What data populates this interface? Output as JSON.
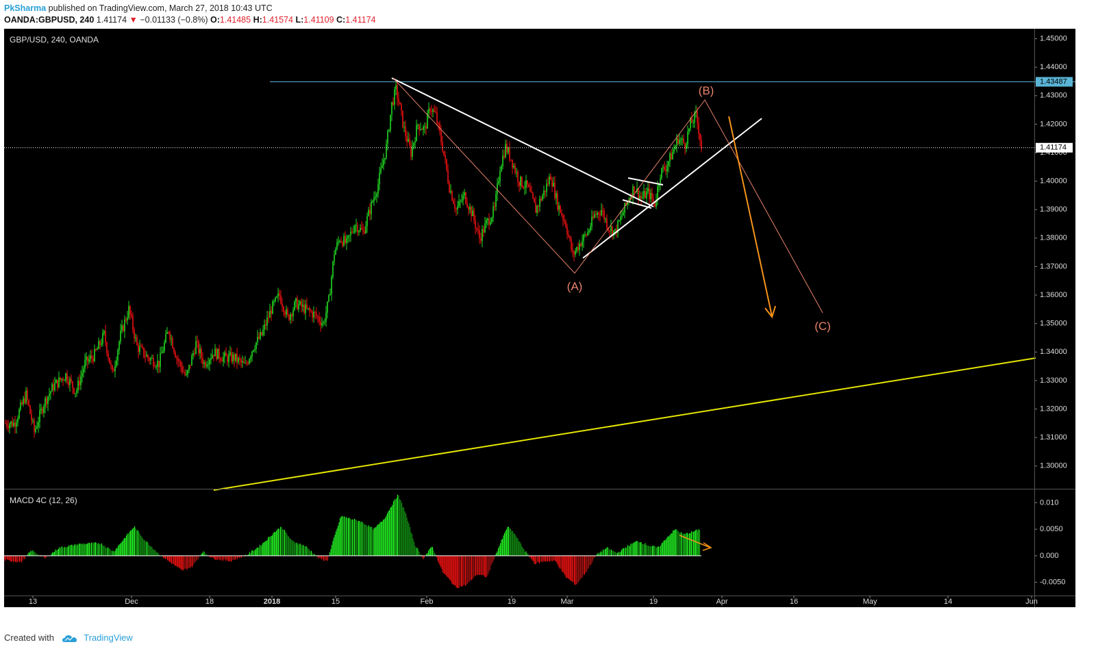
{
  "header": {
    "author": "PkSharma",
    "published_text": " published on TradingView.com, March 27, 2018 10:43 UTC",
    "symbol": "OANDA:GBPUSD, 240",
    "last": "1.41174",
    "change": "−0.01133 (−0.8%)",
    "o_label": "O:",
    "o_value": "1.41485",
    "h_label": "H:",
    "h_value": "1.41574",
    "l_label": "L:",
    "l_value": "1.41109",
    "c_label": "C:",
    "c_value": "1.41174"
  },
  "footer": {
    "created_with": "Created with",
    "brand": "TradingView"
  },
  "colors": {
    "up": "#22dd22",
    "down": "#ee1111",
    "background": "#000000",
    "axis_text": "#dddddd",
    "trend_yellow": "#e6e600",
    "resistance": "#5ab4d6",
    "wave": "#e8836a",
    "projection": "#f7931a"
  },
  "chart_data": [
    {
      "type": "candlestick",
      "title": "GBP/USD, 240, OANDA",
      "ylim": [
        1.292,
        1.4535
      ],
      "y_ticks": [
        "1.30000",
        "1.31000",
        "1.32000",
        "1.33000",
        "1.34000",
        "1.35000",
        "1.36000",
        "1.37000",
        "1.38000",
        "1.39000",
        "1.40000",
        "1.41000",
        "1.42000",
        "1.43000",
        "1.44000",
        "1.45000"
      ],
      "x_ticks": [
        "13",
        "Dec",
        "18",
        "2018",
        "15",
        "Feb",
        "19",
        "Mar",
        "19",
        "Apr",
        "16",
        "May",
        "14",
        "Jun"
      ],
      "price_line": 1.41174,
      "price_label": "1.41174",
      "resistance": 1.43487,
      "resistance_label": "1.43487",
      "price_path": [
        [
          0,
          1.315
        ],
        [
          15,
          1.315
        ],
        [
          32,
          1.325
        ],
        [
          44,
          1.312
        ],
        [
          58,
          1.322
        ],
        [
          72,
          1.328
        ],
        [
          90,
          1.332
        ],
        [
          105,
          1.326
        ],
        [
          118,
          1.336
        ],
        [
          132,
          1.339
        ],
        [
          146,
          1.346
        ],
        [
          158,
          1.332
        ],
        [
          170,
          1.346
        ],
        [
          182,
          1.355
        ],
        [
          194,
          1.342
        ],
        [
          210,
          1.338
        ],
        [
          226,
          1.336
        ],
        [
          240,
          1.348
        ],
        [
          252,
          1.338
        ],
        [
          266,
          1.331
        ],
        [
          280,
          1.343
        ],
        [
          292,
          1.336
        ],
        [
          306,
          1.34
        ],
        [
          320,
          1.338
        ],
        [
          336,
          1.338
        ],
        [
          352,
          1.335
        ],
        [
          364,
          1.342
        ],
        [
          376,
          1.346
        ],
        [
          390,
          1.355
        ],
        [
          402,
          1.36
        ],
        [
          414,
          1.352
        ],
        [
          426,
          1.357
        ],
        [
          440,
          1.355
        ],
        [
          454,
          1.353
        ],
        [
          466,
          1.35
        ],
        [
          474,
          1.358
        ],
        [
          482,
          1.375
        ],
        [
          490,
          1.38
        ],
        [
          500,
          1.378
        ],
        [
          512,
          1.385
        ],
        [
          524,
          1.382
        ],
        [
          534,
          1.39
        ],
        [
          546,
          1.399
        ],
        [
          558,
          1.412
        ],
        [
          566,
          1.427
        ],
        [
          572,
          1.432
        ],
        [
          576,
          1.428
        ],
        [
          584,
          1.418
        ],
        [
          594,
          1.41
        ],
        [
          604,
          1.42
        ],
        [
          614,
          1.418
        ],
        [
          622,
          1.426
        ],
        [
          630,
          1.423
        ],
        [
          640,
          1.412
        ],
        [
          650,
          1.398
        ],
        [
          660,
          1.39
        ],
        [
          672,
          1.395
        ],
        [
          684,
          1.388
        ],
        [
          694,
          1.38
        ],
        [
          704,
          1.385
        ],
        [
          716,
          1.39
        ],
        [
          724,
          1.405
        ],
        [
          732,
          1.412
        ],
        [
          740,
          1.408
        ],
        [
          752,
          1.4
        ],
        [
          764,
          1.398
        ],
        [
          776,
          1.39
        ],
        [
          788,
          1.396
        ],
        [
          798,
          1.402
        ],
        [
          808,
          1.392
        ],
        [
          820,
          1.385
        ],
        [
          830,
          1.374
        ],
        [
          840,
          1.378
        ],
        [
          852,
          1.382
        ],
        [
          862,
          1.388
        ],
        [
          872,
          1.39
        ],
        [
          882,
          1.384
        ],
        [
          892,
          1.382
        ],
        [
          902,
          1.388
        ],
        [
          912,
          1.394
        ],
        [
          920,
          1.398
        ],
        [
          930,
          1.394
        ],
        [
          940,
          1.396
        ],
        [
          950,
          1.392
        ],
        [
          958,
          1.403
        ],
        [
          966,
          1.405
        ],
        [
          976,
          1.41
        ],
        [
          984,
          1.415
        ],
        [
          994,
          1.413
        ],
        [
          1002,
          1.42
        ],
        [
          1010,
          1.423
        ],
        [
          1015,
          1.417
        ],
        [
          1018,
          1.4117
        ]
      ]
    },
    {
      "type": "bar",
      "title": "MACD 4C (12, 26)",
      "ylim": [
        -0.0075,
        0.0125
      ],
      "y_ticks": [
        "0.010",
        "0.0050",
        "0.000",
        "-0.0050"
      ],
      "histogram_path": [
        [
          0,
          -0.0008
        ],
        [
          25,
          -0.0012
        ],
        [
          40,
          0.001
        ],
        [
          60,
          -0.0005
        ],
        [
          80,
          0.0015
        ],
        [
          110,
          0.0022
        ],
        [
          140,
          0.0024
        ],
        [
          160,
          0.0008
        ],
        [
          180,
          0.004
        ],
        [
          190,
          0.0055
        ],
        [
          205,
          0.003
        ],
        [
          225,
          0.0005
        ],
        [
          240,
          -0.001
        ],
        [
          260,
          -0.0028
        ],
        [
          275,
          -0.002
        ],
        [
          290,
          0.0008
        ],
        [
          305,
          -0.0005
        ],
        [
          330,
          -0.001
        ],
        [
          355,
          0.0002
        ],
        [
          375,
          0.002
        ],
        [
          395,
          0.0045
        ],
        [
          405,
          0.0055
        ],
        [
          420,
          0.0028
        ],
        [
          440,
          0.0018
        ],
        [
          460,
          -0.0005
        ],
        [
          472,
          -0.001
        ],
        [
          482,
          0.0035
        ],
        [
          492,
          0.0075
        ],
        [
          505,
          0.007
        ],
        [
          520,
          0.0065
        ],
        [
          540,
          0.005
        ],
        [
          555,
          0.007
        ],
        [
          568,
          0.01
        ],
        [
          575,
          0.0115
        ],
        [
          585,
          0.0085
        ],
        [
          600,
          0.002
        ],
        [
          612,
          -0.0005
        ],
        [
          625,
          0.0018
        ],
        [
          640,
          -0.003
        ],
        [
          660,
          -0.006
        ],
        [
          675,
          -0.0055
        ],
        [
          690,
          -0.0035
        ],
        [
          705,
          -0.004
        ],
        [
          720,
          0.001
        ],
        [
          735,
          0.0055
        ],
        [
          745,
          0.0042
        ],
        [
          760,
          0.001
        ],
        [
          775,
          -0.0015
        ],
        [
          790,
          -0.001
        ],
        [
          805,
          -0.001
        ],
        [
          820,
          -0.004
        ],
        [
          835,
          -0.0055
        ],
        [
          850,
          -0.003
        ],
        [
          865,
          0.0002
        ],
        [
          880,
          0.0015
        ],
        [
          895,
          0.0005
        ],
        [
          910,
          0.0018
        ],
        [
          925,
          0.0028
        ],
        [
          940,
          0.002
        ],
        [
          955,
          0.0015
        ],
        [
          968,
          0.0035
        ],
        [
          980,
          0.005
        ],
        [
          992,
          0.004
        ],
        [
          1005,
          0.0045
        ],
        [
          1016,
          0.005
        ]
      ]
    }
  ],
  "annotations": {
    "wave_a": "(A)",
    "wave_b": "(B)",
    "wave_c": "(C)"
  }
}
